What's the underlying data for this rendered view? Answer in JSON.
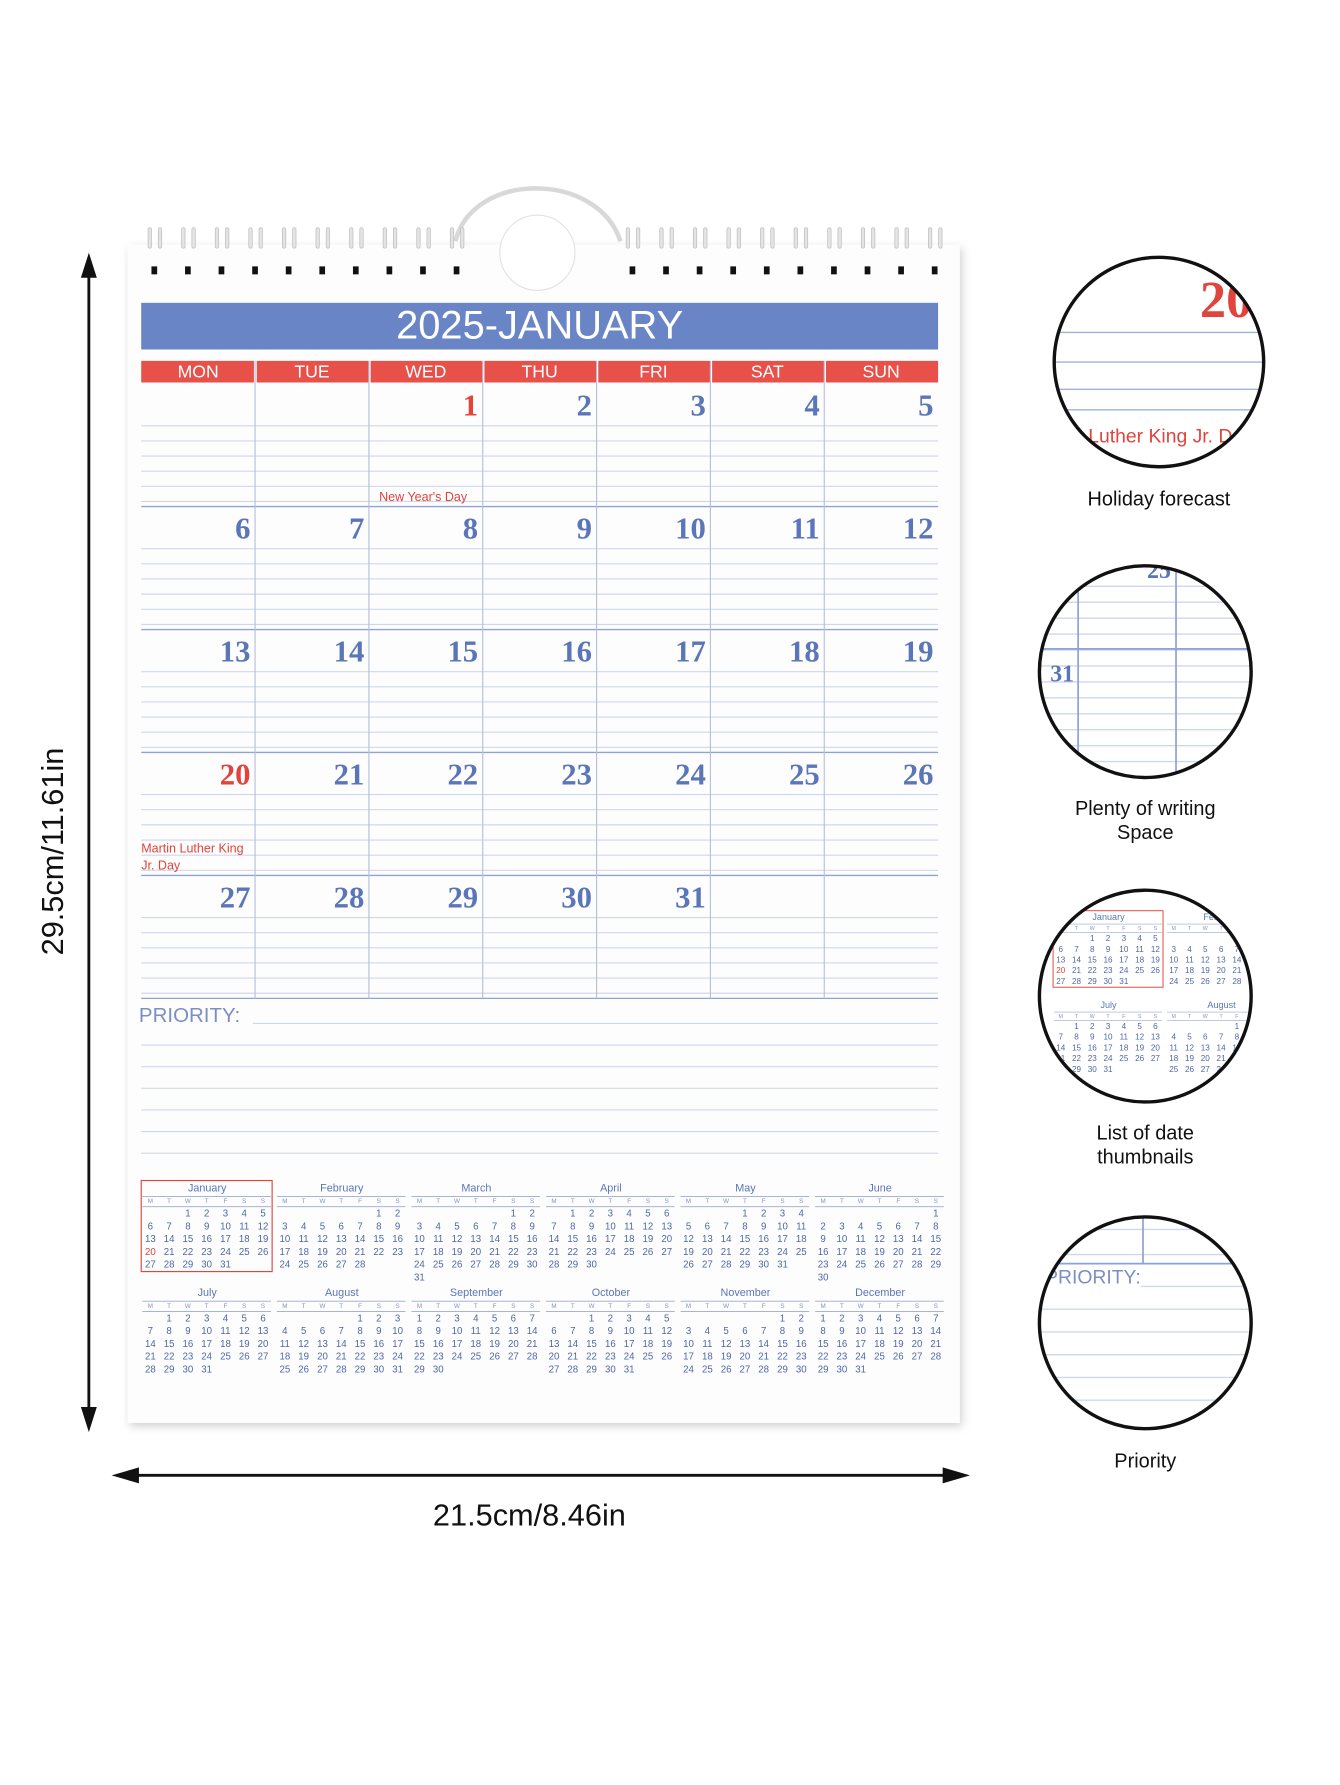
{
  "dimensions": {
    "height": "29.5cm/11.61in",
    "width": "21.5cm/8.46in"
  },
  "calendar": {
    "title": "2025-JANUARY",
    "weekdays": [
      "MON",
      "TUE",
      "WED",
      "THU",
      "FRI",
      "SAT",
      "SUN"
    ],
    "weeks": [
      [
        null,
        null,
        {
          "day": 1,
          "note": "New Year's Day"
        },
        2,
        3,
        4,
        5
      ],
      [
        6,
        7,
        8,
        9,
        10,
        11,
        12
      ],
      [
        13,
        14,
        15,
        16,
        17,
        18,
        19
      ],
      [
        {
          "day": 20,
          "note": "Martin Luther King Jr. Day"
        },
        21,
        22,
        23,
        24,
        25,
        26
      ],
      [
        27,
        28,
        29,
        30,
        31,
        null,
        null
      ]
    ],
    "priority": "PRIORITY:"
  },
  "year_overview": {
    "weekdays": [
      "M",
      "T",
      "W",
      "T",
      "F",
      "S",
      "S"
    ],
    "highlight_color": "#e0443c",
    "months": [
      {
        "name": "January",
        "current": true,
        "weeks": [
          [
            null,
            null,
            1,
            2,
            3,
            4,
            5
          ],
          [
            6,
            7,
            8,
            9,
            10,
            11,
            12
          ],
          [
            13,
            14,
            15,
            16,
            17,
            18,
            19
          ],
          [
            {
              "day": 20,
              "highlight": true
            },
            21,
            22,
            23,
            24,
            25,
            26
          ],
          [
            27,
            28,
            29,
            30,
            31
          ]
        ]
      },
      {
        "name": "February",
        "weeks": [
          [
            null,
            null,
            null,
            null,
            null,
            1,
            2
          ],
          [
            3,
            4,
            5,
            6,
            7,
            8,
            9
          ],
          [
            10,
            11,
            12,
            13,
            14,
            15,
            16
          ],
          [
            17,
            18,
            19,
            20,
            21,
            22,
            23
          ],
          [
            24,
            25,
            26,
            27,
            28
          ]
        ]
      },
      {
        "name": "March",
        "weeks": [
          [
            null,
            null,
            null,
            null,
            null,
            1,
            2
          ],
          [
            3,
            4,
            5,
            6,
            7,
            8,
            9
          ],
          [
            10,
            11,
            12,
            13,
            14,
            15,
            16
          ],
          [
            17,
            18,
            19,
            20,
            21,
            22,
            23
          ],
          [
            24,
            25,
            26,
            27,
            28,
            29,
            30
          ],
          [
            31
          ]
        ]
      },
      {
        "name": "April",
        "weeks": [
          [
            null,
            1,
            2,
            3,
            4,
            5,
            6
          ],
          [
            7,
            8,
            9,
            10,
            11,
            12,
            13
          ],
          [
            14,
            15,
            16,
            17,
            18,
            19,
            20
          ],
          [
            21,
            22,
            23,
            24,
            25,
            26,
            27
          ],
          [
            28,
            29,
            30
          ]
        ]
      },
      {
        "name": "May",
        "weeks": [
          [
            null,
            null,
            null,
            1,
            2,
            3,
            4
          ],
          [
            5,
            6,
            7,
            8,
            9,
            10,
            11
          ],
          [
            12,
            13,
            14,
            15,
            16,
            17,
            18
          ],
          [
            19,
            20,
            21,
            22,
            23,
            24,
            25
          ],
          [
            26,
            27,
            28,
            29,
            30,
            31
          ]
        ]
      },
      {
        "name": "June",
        "weeks": [
          [
            null,
            null,
            null,
            null,
            null,
            null,
            1
          ],
          [
            2,
            3,
            4,
            5,
            6,
            7,
            8
          ],
          [
            9,
            10,
            11,
            12,
            13,
            14,
            15
          ],
          [
            16,
            17,
            18,
            19,
            20,
            21,
            22
          ],
          [
            23,
            24,
            25,
            26,
            27,
            28,
            29
          ],
          [
            30
          ]
        ]
      },
      {
        "name": "July",
        "weeks": [
          [
            null,
            1,
            2,
            3,
            4,
            5,
            6
          ],
          [
            7,
            8,
            9,
            10,
            11,
            12,
            13
          ],
          [
            14,
            15,
            16,
            17,
            18,
            19,
            20
          ],
          [
            21,
            22,
            23,
            24,
            25,
            26,
            27
          ],
          [
            28,
            29,
            30,
            31
          ]
        ]
      },
      {
        "name": "August",
        "weeks": [
          [
            null,
            null,
            null,
            null,
            1,
            2,
            3
          ],
          [
            4,
            5,
            6,
            7,
            8,
            9,
            10
          ],
          [
            11,
            12,
            13,
            14,
            15,
            16,
            17
          ],
          [
            18,
            19,
            20,
            21,
            22,
            23,
            24
          ],
          [
            25,
            26,
            27,
            28,
            29,
            30,
            31
          ]
        ]
      },
      {
        "name": "September",
        "weeks": [
          [
            1,
            2,
            3,
            4,
            5,
            6,
            7
          ],
          [
            8,
            9,
            10,
            11,
            12,
            13,
            14
          ],
          [
            15,
            16,
            17,
            18,
            19,
            20,
            21
          ],
          [
            22,
            23,
            24,
            25,
            26,
            27,
            28
          ],
          [
            29,
            30
          ]
        ]
      },
      {
        "name": "October",
        "weeks": [
          [
            null,
            null,
            1,
            2,
            3,
            4,
            5
          ],
          [
            6,
            7,
            8,
            9,
            10,
            11,
            12
          ],
          [
            13,
            14,
            15,
            16,
            17,
            18,
            19
          ],
          [
            20,
            21,
            22,
            23,
            24,
            25,
            26
          ],
          [
            27,
            28,
            29,
            30,
            31
          ]
        ]
      },
      {
        "name": "November",
        "weeks": [
          [
            null,
            null,
            null,
            null,
            null,
            1,
            2
          ],
          [
            3,
            4,
            5,
            6,
            7,
            8,
            9
          ],
          [
            10,
            11,
            12,
            13,
            14,
            15,
            16
          ],
          [
            17,
            18,
            19,
            20,
            21,
            22,
            23
          ],
          [
            24,
            25,
            26,
            27,
            28,
            29,
            30
          ]
        ]
      },
      {
        "name": "December",
        "weeks": [
          [
            1,
            2,
            3,
            4,
            5,
            6,
            7
          ],
          [
            8,
            9,
            10,
            11,
            12,
            13,
            14
          ],
          [
            15,
            16,
            17,
            18,
            19,
            20,
            21
          ],
          [
            22,
            23,
            24,
            25,
            26,
            27,
            28
          ],
          [
            29,
            30,
            31
          ]
        ]
      }
    ]
  },
  "features": [
    "Holiday forecast",
    "Plenty of writing Space",
    "List of date thumbnails",
    "Priority"
  ]
}
